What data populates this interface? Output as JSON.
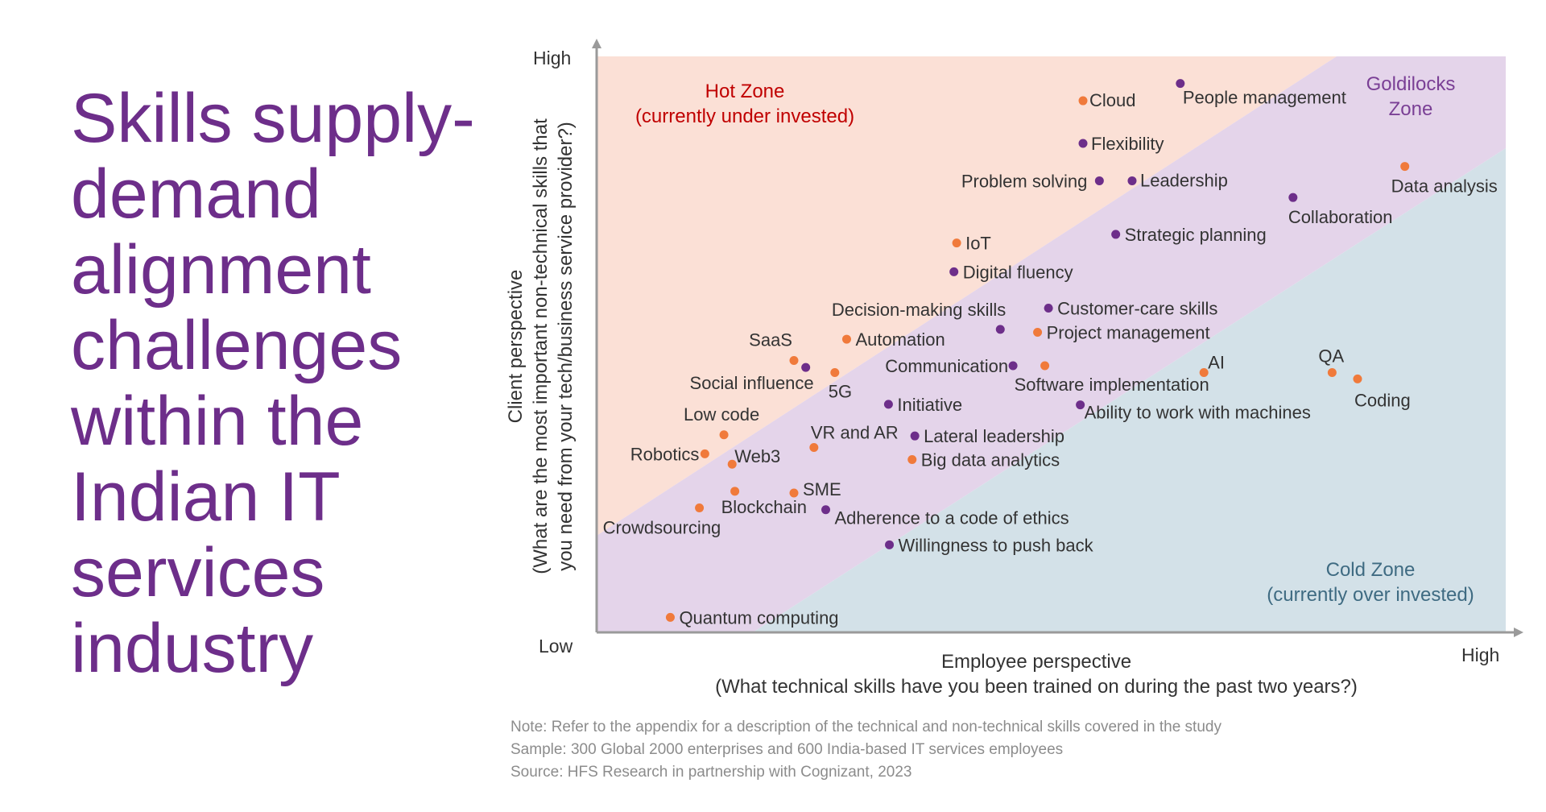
{
  "title": "Skills supply-demand alignment challenges within the Indian IT services industry",
  "notes": {
    "note": "Note: Refer to the appendix for a description of the technical and non-technical skills covered in the study",
    "sample": "Sample: 300 Global 2000 enterprises and 600 India-based IT services employees",
    "source": "Source: HFS Research in partnership with Cognizant, 2023"
  },
  "chart_data": {
    "type": "scatter",
    "x_axis": {
      "label": "Employee perspective",
      "sublabel": "(What technical skills have you been trained on during the past two years?)",
      "low": "Low",
      "high": "High",
      "range": [
        0,
        100
      ]
    },
    "y_axis": {
      "label": "Client perspective",
      "sublabel": "(What are the most important non-technical skills that",
      "sublabel2": "you need from your tech/business service provider?)",
      "low": "Low",
      "high": "High",
      "range": [
        0,
        100
      ]
    },
    "grid": false,
    "zones": [
      {
        "name": "Hot Zone",
        "sub": "(currently under invested)",
        "color": "#fbe0d6",
        "text_color": "#c00000"
      },
      {
        "name": "Goldilocks",
        "sub": "Zone",
        "color": "#e4d4ea",
        "text_color": "#7a3f95"
      },
      {
        "name": "Cold Zone",
        "sub": "(currently over invested)",
        "color": "#d3e1e8",
        "text_color": "#3f6b82"
      }
    ],
    "series_colors": {
      "technical": "#f07a3b",
      "non_technical": "#6d2e8a"
    },
    "points": [
      {
        "label": "Cloud",
        "x": 53.5,
        "y": 92.3,
        "type": "technical"
      },
      {
        "label": "People management",
        "x": 64.2,
        "y": 95.3,
        "type": "non_technical"
      },
      {
        "label": "Flexibility",
        "x": 53.5,
        "y": 84.9,
        "type": "non_technical"
      },
      {
        "label": "Problem solving",
        "x": 55.3,
        "y": 78.4,
        "type": "non_technical"
      },
      {
        "label": "Leadership",
        "x": 58.9,
        "y": 78.4,
        "type": "non_technical"
      },
      {
        "label": "Data analysis",
        "x": 88.9,
        "y": 80.9,
        "type": "technical"
      },
      {
        "label": "Collaboration",
        "x": 76.6,
        "y": 75.5,
        "type": "non_technical"
      },
      {
        "label": "Strategic planning",
        "x": 57.1,
        "y": 69.1,
        "type": "non_technical"
      },
      {
        "label": "IoT",
        "x": 39.6,
        "y": 67.6,
        "type": "technical"
      },
      {
        "label": "Digital fluency",
        "x": 39.3,
        "y": 62.6,
        "type": "non_technical"
      },
      {
        "label": "Customer-care skills",
        "x": 49.7,
        "y": 56.3,
        "type": "non_technical"
      },
      {
        "label": "Decision-making skills",
        "x": 44.4,
        "y": 52.6,
        "type": "non_technical"
      },
      {
        "label": "Project management",
        "x": 48.5,
        "y": 52.1,
        "type": "technical"
      },
      {
        "label": "SaaS",
        "x": 21.7,
        "y": 47.2,
        "type": "technical"
      },
      {
        "label": "Social influence",
        "x": 23.0,
        "y": 46.0,
        "type": "non_technical"
      },
      {
        "label": "Automation",
        "x": 27.5,
        "y": 50.9,
        "type": "technical"
      },
      {
        "label": "5G",
        "x": 26.2,
        "y": 45.1,
        "type": "technical"
      },
      {
        "label": "Communication",
        "x": 45.8,
        "y": 46.3,
        "type": "non_technical"
      },
      {
        "label": "Software implementation",
        "x": 49.3,
        "y": 46.3,
        "type": "technical"
      },
      {
        "label": "AI",
        "x": 66.8,
        "y": 45.1,
        "type": "technical"
      },
      {
        "label": "QA",
        "x": 80.9,
        "y": 45.1,
        "type": "technical"
      },
      {
        "label": "Coding",
        "x": 83.7,
        "y": 44.0,
        "type": "technical"
      },
      {
        "label": "Initiative",
        "x": 32.1,
        "y": 39.6,
        "type": "non_technical"
      },
      {
        "label": "Ability to work with machines",
        "x": 53.2,
        "y": 39.5,
        "type": "non_technical"
      },
      {
        "label": "Low code",
        "x": 14.0,
        "y": 34.3,
        "type": "technical"
      },
      {
        "label": "VR and AR",
        "x": 23.9,
        "y": 32.1,
        "type": "technical"
      },
      {
        "label": "Lateral leadership",
        "x": 35.0,
        "y": 34.1,
        "type": "non_technical"
      },
      {
        "label": "Robotics",
        "x": 11.9,
        "y": 31.0,
        "type": "technical"
      },
      {
        "label": "Web3",
        "x": 14.9,
        "y": 29.2,
        "type": "technical"
      },
      {
        "label": "Big data analytics",
        "x": 34.7,
        "y": 30.0,
        "type": "technical"
      },
      {
        "label": "SME",
        "x": 21.7,
        "y": 24.2,
        "type": "technical"
      },
      {
        "label": "Blockchain",
        "x": 15.2,
        "y": 24.5,
        "type": "technical"
      },
      {
        "label": "Crowdsourcing",
        "x": 11.3,
        "y": 21.6,
        "type": "technical"
      },
      {
        "label": "Adherence to a code of ethics",
        "x": 25.2,
        "y": 21.3,
        "type": "non_technical"
      },
      {
        "label": "Willingness to push back",
        "x": 32.2,
        "y": 15.2,
        "type": "non_technical"
      },
      {
        "label": "Quantum computing",
        "x": 8.1,
        "y": 2.6,
        "type": "technical"
      }
    ]
  }
}
